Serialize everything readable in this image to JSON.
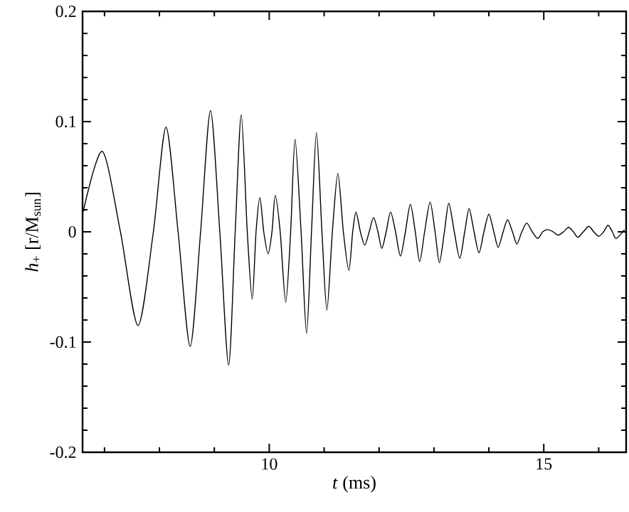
{
  "chart_data": {
    "type": "line",
    "xlabel": "*t* (ms)",
    "ylabel": "*h*$_{+}$ [r/M$_{sun}$]",
    "x": [
      6.61,
      6.96,
      7.29,
      7.61,
      7.89,
      8.12,
      8.34,
      8.56,
      8.75,
      8.93,
      9.1,
      9.26,
      9.38,
      9.49,
      9.6,
      9.69,
      9.76,
      9.83,
      9.9,
      9.98,
      10.05,
      10.11,
      10.2,
      10.3,
      10.39,
      10.47,
      10.58,
      10.68,
      10.77,
      10.86,
      10.96,
      11.05,
      11.15,
      11.25,
      11.35,
      11.45,
      11.52,
      11.58,
      11.66,
      11.74,
      11.82,
      11.9,
      11.98,
      12.05,
      12.13,
      12.21,
      12.3,
      12.39,
      12.48,
      12.57,
      12.66,
      12.74,
      12.83,
      12.93,
      13.02,
      13.1,
      13.19,
      13.27,
      13.37,
      13.47,
      13.56,
      13.64,
      13.73,
      13.82,
      13.91,
      14.0,
      14.09,
      14.17,
      14.26,
      14.34,
      14.43,
      14.51,
      14.6,
      14.69,
      14.79,
      14.89,
      14.98,
      15.07,
      15.17,
      15.26,
      15.36,
      15.45,
      15.54,
      15.62,
      15.72,
      15.82,
      15.91,
      16.0,
      16.09,
      16.17,
      16.25,
      16.32,
      16.47
    ],
    "values": [
      0.018,
      0.073,
      0,
      -0.085,
      0,
      0.095,
      0,
      -0.104,
      0,
      0.11,
      0,
      -0.121,
      0,
      0.106,
      0,
      -0.061,
      0,
      0.031,
      0,
      -0.02,
      0,
      0.033,
      0,
      -0.064,
      0,
      0.084,
      0,
      -0.092,
      0,
      0.09,
      0,
      -0.071,
      0,
      0.053,
      0,
      -0.035,
      0,
      0.018,
      0,
      -0.012,
      0,
      0.013,
      0,
      -0.015,
      0,
      0.018,
      0,
      -0.022,
      0,
      0.025,
      0,
      -0.027,
      0,
      0.027,
      0,
      -0.028,
      0,
      0.026,
      0,
      -0.024,
      0,
      0.021,
      0,
      -0.019,
      0,
      0.016,
      0,
      -0.014,
      0,
      0.011,
      0,
      -0.011,
      0,
      0.008,
      0,
      -0.006,
      0,
      0.002,
      0,
      -0.003,
      0,
      0.004,
      0,
      -0.005,
      0,
      0.005,
      0,
      -0.004,
      0,
      0.006,
      0,
      -0.006,
      0.002
    ],
    "color": "#000000",
    "line_style": "solid",
    "marker": "none",
    "xlim": [
      6.6,
      16.5
    ],
    "ylim": [
      -0.2,
      0.2
    ],
    "xticks": [
      {
        "value": 7,
        "label": null
      },
      {
        "value": 8,
        "label": null
      },
      {
        "value": 9,
        "label": null
      },
      10,
      {
        "value": 11,
        "label": null
      },
      {
        "value": 12,
        "label": null
      },
      {
        "value": 13,
        "label": null
      },
      {
        "value": 14,
        "label": null
      },
      15,
      {
        "value": 16,
        "label": null
      }
    ],
    "yticks": [
      -0.2,
      {
        "value": -0.18,
        "label": null
      },
      {
        "value": -0.16,
        "label": null
      },
      {
        "value": -0.14,
        "label": null
      },
      {
        "value": -0.12,
        "label": null
      },
      -0.1,
      {
        "value": -0.08,
        "label": null
      },
      {
        "value": -0.06,
        "label": null
      },
      {
        "value": -0.04,
        "label": null
      },
      {
        "value": -0.02,
        "label": null
      },
      0,
      {
        "value": 0.02,
        "label": null
      },
      {
        "value": 0.04,
        "label": null
      },
      {
        "value": 0.06,
        "label": null
      },
      {
        "value": 0.08,
        "label": null
      },
      0.1,
      {
        "value": 0.12,
        "label": null
      },
      {
        "value": 0.14,
        "label": null
      },
      {
        "value": 0.16,
        "label": null
      },
      {
        "value": 0.18,
        "label": null
      },
      0.2
    ]
  }
}
